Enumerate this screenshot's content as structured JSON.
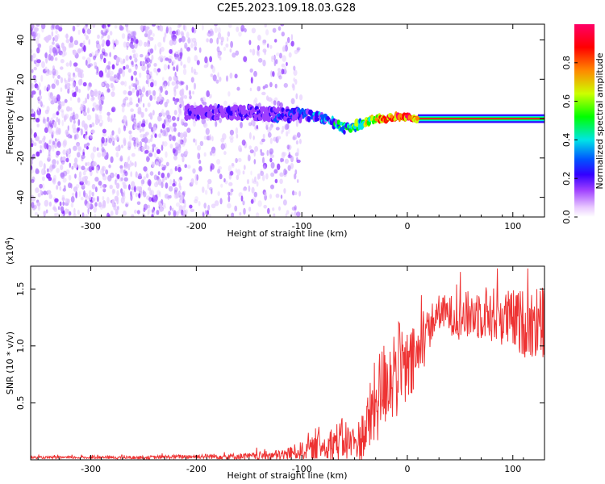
{
  "figure_title": "C2E5.2023.109.18.03.G28",
  "chart_data": [
    {
      "type": "heatmap",
      "xlabel": "Height of straight line (km)",
      "ylabel": "Frequency (Hz)",
      "xlim": [
        -357,
        130
      ],
      "ylim": [
        -50,
        48
      ],
      "x_ticks": [
        -300,
        -200,
        -100,
        0,
        100
      ],
      "y_ticks": [
        -40,
        -20,
        0,
        20,
        40
      ],
      "colorbar": {
        "label": "Normalized spectral amplitude",
        "range": [
          0.0,
          1.0
        ],
        "ticks": [
          0.0,
          0.2,
          0.4,
          0.6,
          0.8
        ],
        "colormap": [
          "#ffffff",
          "#e9c9ff",
          "#9f40ff",
          "#3300ff",
          "#0055ff",
          "#00e5e5",
          "#00ff00",
          "#ccff00",
          "#ff8800",
          "#ff0000",
          "#ff0066"
        ]
      },
      "ridge": {
        "x": [
          -200,
          -150,
          -120,
          -100,
          -85,
          -70,
          -60,
          -50,
          -40,
          -30,
          -20,
          -10,
          0,
          10,
          50,
          100,
          130
        ],
        "freq": [
          3,
          3,
          2,
          2,
          1,
          -2,
          -5,
          -4,
          -2,
          0,
          0,
          1,
          1,
          0,
          0,
          0,
          0
        ],
        "amplitude": [
          0.3,
          0.35,
          0.4,
          0.45,
          0.5,
          0.55,
          0.6,
          0.7,
          0.8,
          0.9,
          0.95,
          1.0,
          1.0,
          1.0,
          1.0,
          1.0,
          1.0
        ]
      },
      "background_noise": {
        "dense_region_x": [
          -357,
          -210
        ],
        "sparse_region_x": [
          -210,
          -100
        ],
        "clean_region_x": [
          -100,
          130
        ]
      }
    },
    {
      "type": "line",
      "xlabel": "Height of straight line (km)",
      "ylabel": "SNR (10 * v/v)",
      "y_multiplier": "(x10^4)",
      "xlim": [
        -357,
        130
      ],
      "ylim": [
        0,
        1.7
      ],
      "x_ticks": [
        -300,
        -200,
        -100,
        0,
        100
      ],
      "y_ticks": [
        0.5,
        1.0,
        1.5
      ],
      "y_tick_labels": [
        "0.5",
        "1.0",
        "1.5"
      ],
      "color": "#ee3333",
      "envelope": {
        "x": [
          -357,
          -250,
          -200,
          -150,
          -120,
          -100,
          -80,
          -60,
          -50,
          -40,
          -30,
          -20,
          -10,
          0,
          10,
          20,
          30,
          50,
          70,
          90,
          110,
          130
        ],
        "mean": [
          0.02,
          0.02,
          0.03,
          0.03,
          0.04,
          0.08,
          0.12,
          0.18,
          0.12,
          0.25,
          0.5,
          0.7,
          0.8,
          0.78,
          0.9,
          1.15,
          1.3,
          1.25,
          1.3,
          1.25,
          1.2,
          1.2
        ],
        "spread": [
          0.01,
          0.015,
          0.02,
          0.03,
          0.05,
          0.08,
          0.12,
          0.2,
          0.15,
          0.25,
          0.4,
          0.4,
          0.45,
          0.35,
          0.3,
          0.2,
          0.15,
          0.2,
          0.25,
          0.25,
          0.3,
          0.35
        ]
      }
    }
  ]
}
